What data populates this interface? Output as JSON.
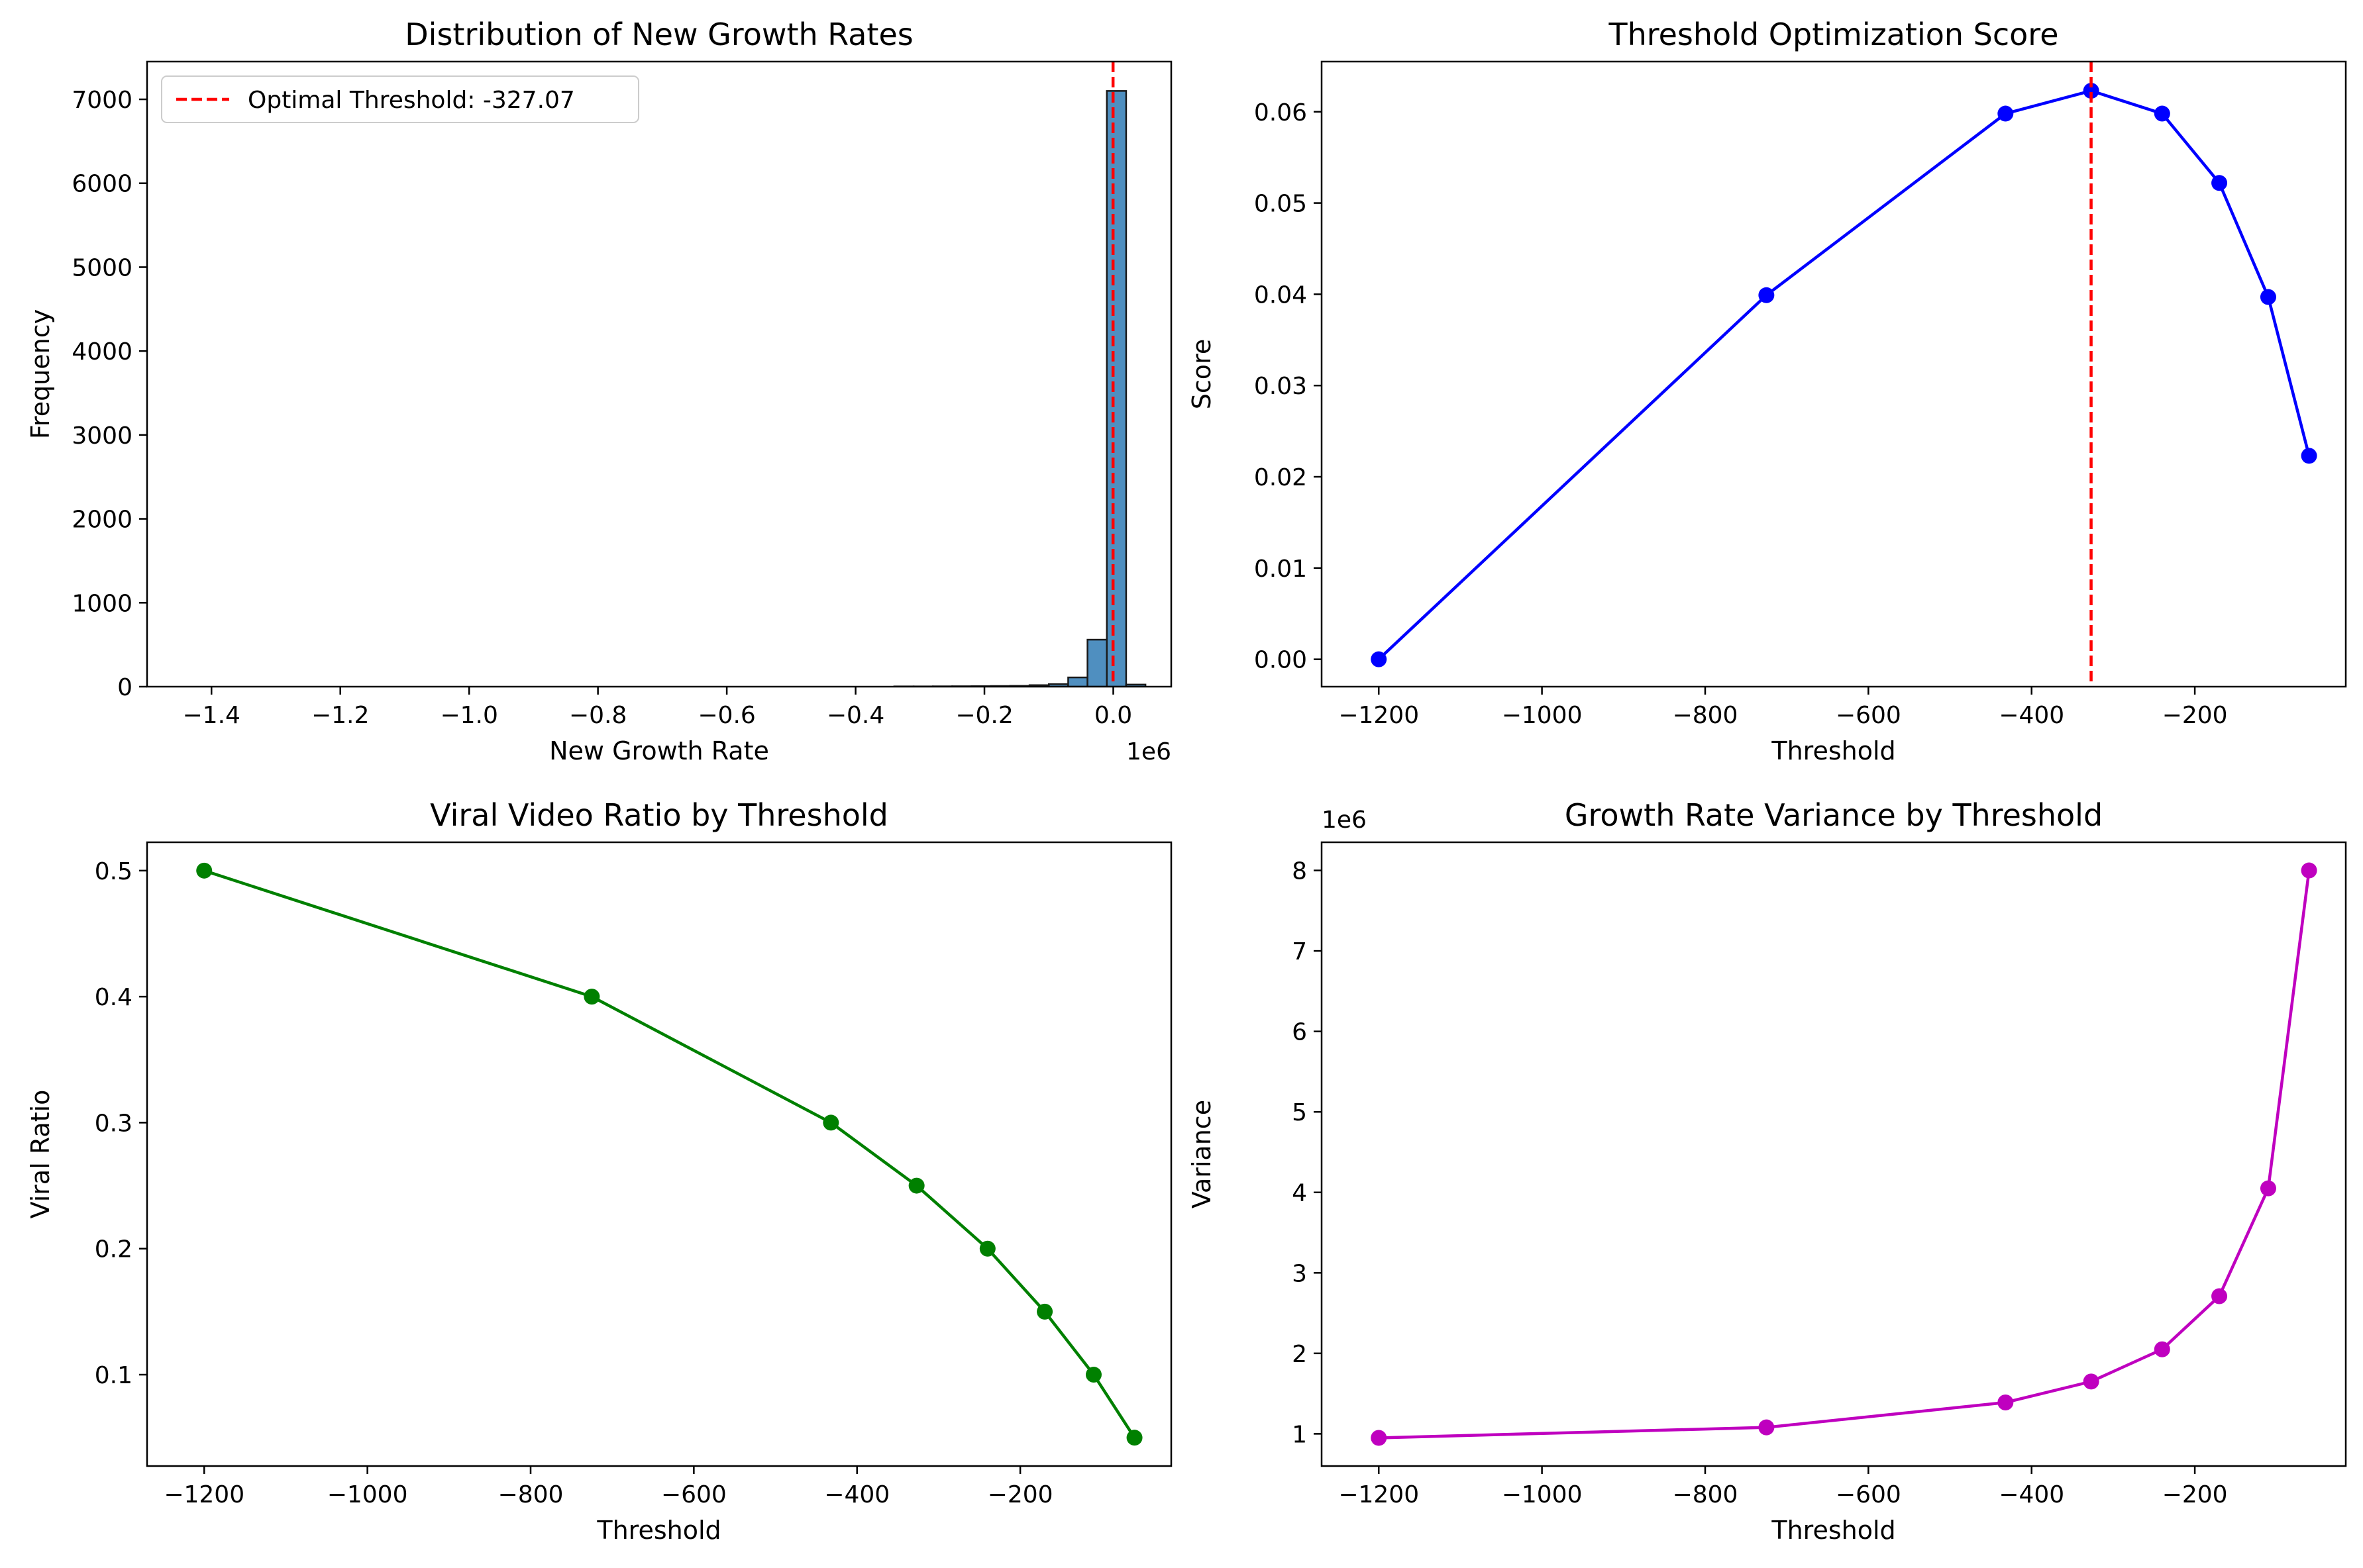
{
  "chart_data": [
    {
      "type": "bar",
      "title": "Distribution of New Growth Rates",
      "xlabel": "New Growth Rate",
      "ylabel": "Frequency",
      "x_offset_label": "1e6",
      "xlim": [
        -1.5,
        0.09
      ],
      "ylim": [
        0,
        7450
      ],
      "xticks": [
        -1.4,
        -1.2,
        -1.0,
        -0.8,
        -0.6,
        -0.4,
        -0.2,
        0.0
      ],
      "xtick_labels": [
        "−1.4",
        "−1.2",
        "−1.0",
        "−0.8",
        "−0.6",
        "−0.4",
        "−0.2",
        "0.0"
      ],
      "yticks": [
        0,
        1000,
        2000,
        3000,
        4000,
        5000,
        6000,
        7000
      ],
      "ytick_labels": [
        "0",
        "1000",
        "2000",
        "3000",
        "4000",
        "5000",
        "6000",
        "7000"
      ],
      "bins_x": [
        -0.34,
        -0.31,
        -0.28,
        -0.25,
        -0.22,
        -0.19,
        -0.16,
        -0.13,
        -0.1,
        -0.07,
        -0.04,
        -0.01,
        0.02
      ],
      "bins_width": 0.03,
      "values": [
        3,
        3,
        4,
        5,
        6,
        8,
        10,
        18,
        30,
        110,
        560,
        7100,
        25
      ],
      "threshold_line": {
        "x": -0.000327,
        "label": "Optimal Threshold: -327.07",
        "color": "#ff0000"
      },
      "bar_color": "#4f8fc0",
      "legend_position": "upper left",
      "grid": false
    },
    {
      "type": "line",
      "title": "Threshold Optimization Score",
      "xlabel": "Threshold",
      "ylabel": "Score",
      "xlim": [
        -1270,
        -15
      ],
      "ylim": [
        -0.003,
        0.0655
      ],
      "xticks": [
        -1200,
        -1000,
        -800,
        -600,
        -400,
        -200
      ],
      "xtick_labels": [
        "−1200",
        "−1000",
        "−800",
        "−600",
        "−400",
        "−200"
      ],
      "yticks": [
        0,
        0.01,
        0.02,
        0.03,
        0.04,
        0.05,
        0.06
      ],
      "ytick_labels": [
        "0.00",
        "0.01",
        "0.02",
        "0.03",
        "0.04",
        "0.05",
        "0.06"
      ],
      "x": [
        -1200,
        -725,
        -432,
        -327,
        -240,
        -170,
        -110,
        -60
      ],
      "values": [
        0.0,
        0.0399,
        0.0598,
        0.0623,
        0.0598,
        0.0522,
        0.0397,
        0.0223
      ],
      "color": "#0000ff",
      "threshold_line": {
        "x": -327.07,
        "color": "#ff0000"
      },
      "grid": false
    },
    {
      "type": "line",
      "title": "Viral Video Ratio by Threshold",
      "xlabel": "Threshold",
      "ylabel": "Viral Ratio",
      "xlim": [
        -1270,
        -15
      ],
      "ylim": [
        0.0275,
        0.5225
      ],
      "xticks": [
        -1200,
        -1000,
        -800,
        -600,
        -400,
        -200
      ],
      "xtick_labels": [
        "−1200",
        "−1000",
        "−800",
        "−600",
        "−400",
        "−200"
      ],
      "yticks": [
        0.1,
        0.2,
        0.3,
        0.4,
        0.5
      ],
      "ytick_labels": [
        "0.1",
        "0.2",
        "0.3",
        "0.4",
        "0.5"
      ],
      "x": [
        -1200,
        -725,
        -432,
        -327,
        -240,
        -170,
        -110,
        -60
      ],
      "values": [
        0.5,
        0.4,
        0.3,
        0.25,
        0.2,
        0.15,
        0.1,
        0.05
      ],
      "color": "#008000",
      "grid": false
    },
    {
      "type": "line",
      "title": "Growth Rate Variance by Threshold",
      "xlabel": "Threshold",
      "ylabel": "Variance",
      "y_offset_label": "1e6",
      "xlim": [
        -1270,
        -15
      ],
      "ylim": [
        0.6,
        8.35
      ],
      "xticks": [
        -1200,
        -1000,
        -800,
        -600,
        -400,
        -200
      ],
      "xtick_labels": [
        "−1200",
        "−1000",
        "−800",
        "−600",
        "−400",
        "−200"
      ],
      "yticks": [
        1,
        2,
        3,
        4,
        5,
        6,
        7,
        8
      ],
      "ytick_labels": [
        "1",
        "2",
        "3",
        "4",
        "5",
        "6",
        "7",
        "8"
      ],
      "x": [
        -1200,
        -725,
        -432,
        -327,
        -240,
        -170,
        -110,
        -60
      ],
      "values": [
        0.95,
        1.08,
        1.39,
        1.65,
        2.05,
        2.71,
        4.05,
        8.0
      ],
      "color": "#bf00bf",
      "grid": false
    }
  ]
}
